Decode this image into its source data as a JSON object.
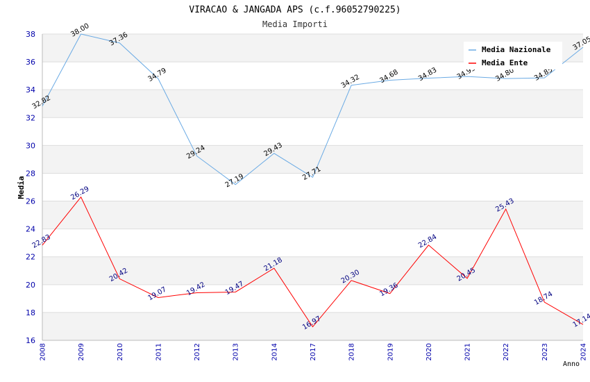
{
  "chart_data": {
    "type": "line",
    "title": "VIRACAO & JANGADA APS (c.f.96052790225)",
    "subtitle": "Media Importi",
    "xlabel": "Anno",
    "ylabel": "Media",
    "ylim": [
      16,
      38
    ],
    "yticks": [
      "16",
      "18",
      "20",
      "22",
      "24",
      "26",
      "28",
      "30",
      "32",
      "34",
      "36",
      "38"
    ],
    "categories": [
      "2008",
      "2009",
      "2010",
      "2011",
      "2012",
      "2013",
      "2014",
      "2017",
      "2018",
      "2019",
      "2020",
      "2021",
      "2022",
      "2023",
      "2024"
    ],
    "grid": true,
    "legend_position": "top-right",
    "series": [
      {
        "name": "Media Nazionale",
        "color": "#6aaae4",
        "values": [
          32.82,
          38.0,
          37.36,
          34.79,
          29.24,
          27.19,
          29.43,
          27.71,
          34.32,
          34.68,
          34.83,
          34.95,
          34.8,
          34.85,
          37.05
        ],
        "labels": [
          "32.82",
          "38.00",
          "37.36",
          "34.79",
          "29.24",
          "27.19",
          "29.43",
          "27.71",
          "34.32",
          "34.68",
          "34.83",
          "34.95",
          "34.80",
          "34.85",
          "37.05"
        ]
      },
      {
        "name": "Media Ente",
        "color": "#ff0000",
        "values": [
          22.83,
          26.29,
          20.42,
          19.07,
          19.42,
          19.47,
          21.18,
          16.97,
          20.3,
          19.36,
          22.84,
          20.45,
          25.43,
          18.74,
          17.14
        ],
        "labels": [
          "22.83",
          "26.29",
          "20.42",
          "19.07",
          "19.42",
          "19.47",
          "21.18",
          "16.97",
          "20.30",
          "19.36",
          "22.84",
          "20.45",
          "25.43",
          "18.74",
          "17.14"
        ]
      }
    ]
  }
}
